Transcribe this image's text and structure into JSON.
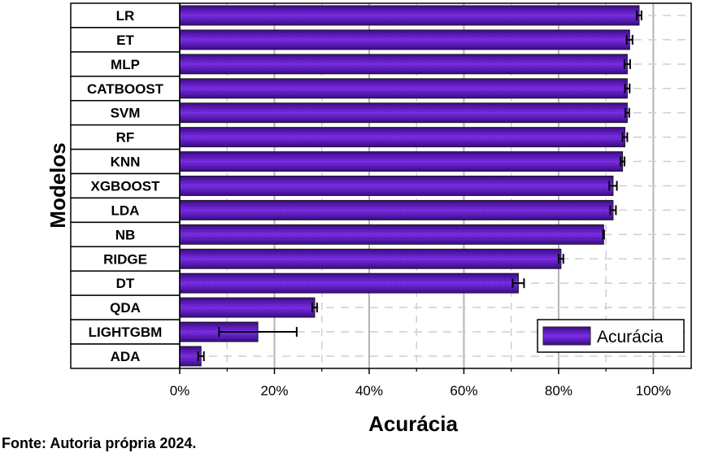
{
  "chart_data": {
    "type": "bar",
    "orientation": "horizontal",
    "categories": [
      "LR",
      "ET",
      "MLP",
      "CATBOOST",
      "SVM",
      "RF",
      "KNN",
      "XGBOOST",
      "LDA",
      "NB",
      "RIDGE",
      "DT",
      "QDA",
      "LIGHTGBM",
      "ADA"
    ],
    "series": [
      {
        "name": "Acurácia",
        "values": [
          0.97,
          0.95,
          0.945,
          0.945,
          0.945,
          0.94,
          0.935,
          0.915,
          0.915,
          0.895,
          0.805,
          0.715,
          0.285,
          0.165,
          0.045
        ],
        "errors": [
          0.005,
          0.006,
          0.006,
          0.005,
          0.004,
          0.005,
          0.004,
          0.008,
          0.006,
          0.001,
          0.005,
          0.012,
          0.005,
          0.082,
          0.006
        ]
      }
    ],
    "xlabel": "Acurácia",
    "ylabel": "Modelos",
    "xticks": [
      "0%",
      "20%",
      "40%",
      "60%",
      "80%",
      "100%"
    ],
    "xlim": [
      0,
      1.08
    ],
    "grid": true,
    "legend": "bottom-right",
    "colors": {
      "bar": "#6a1bd6",
      "bar_dark": "#3c0a88",
      "error_bar": "#000000"
    }
  },
  "footer": "Fonte: Autoria própria 2024."
}
